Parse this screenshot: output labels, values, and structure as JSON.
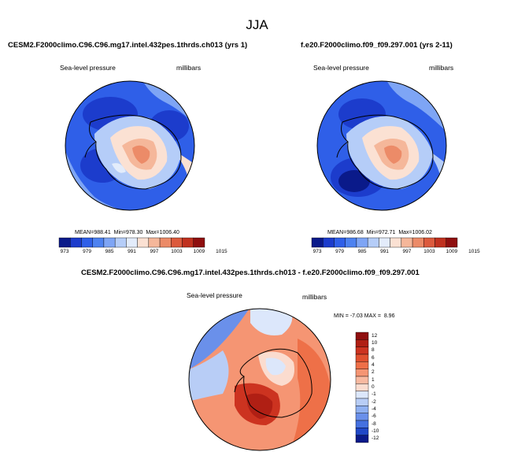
{
  "page": {
    "title": "JJA"
  },
  "panels": [
    {
      "header": "CESM2.F2000climo.C96.C96.mg17.intel.432pes.1thrds.ch013 (yrs 1)",
      "variable": "Sea-level pressure",
      "units": "millibars",
      "stats": {
        "mean_label": "MEAN=",
        "mean": "988.41",
        "min_label": "Min=",
        "min": "978.30",
        "max_label": "Max=",
        "max": "1006.40"
      }
    },
    {
      "header": "f.e20.F2000climo.f09_f09.297.001 (yrs 2-11)",
      "variable": "Sea-level pressure",
      "units": "millibars",
      "stats": {
        "mean_label": "MEAN=",
        "mean": "986.68",
        "min_label": "Min=",
        "min": "972.71",
        "max_label": "Max=",
        "max": "1006.02"
      }
    },
    {
      "header": "CESM2.F2000climo.C96.C96.mg17.intel.432pes.1thrds.ch013 - f.e20.F2000climo.f09_f09.297.001",
      "variable": "Sea-level pressure",
      "units": "millibars",
      "stats": {
        "min_label": "MIN =",
        "min": "-7.03",
        "max_label": "MAX =",
        "max": "8.96"
      }
    }
  ],
  "colorbars": {
    "abs": {
      "labels": [
        "973",
        "979",
        "985",
        "991",
        "997",
        "1003",
        "1009",
        "1015"
      ],
      "colors": [
        "#0a1a8a",
        "#1c3ccc",
        "#2f5fe8",
        "#4d82f0",
        "#7ea5f5",
        "#b5cdf8",
        "#e3ecfb",
        "#fbe1d3",
        "#f5b79a",
        "#ec8b68",
        "#dc5a3d",
        "#c0311f",
        "#8f0f0f"
      ]
    },
    "diff": {
      "labels": [
        "12",
        "10",
        "8",
        "6",
        "4",
        "2",
        "1",
        "0",
        "-1",
        "-2",
        "-4",
        "-6",
        "-8",
        "-10",
        "-12"
      ],
      "colors": [
        "#8f0f0f",
        "#b01f14",
        "#cc3320",
        "#e0502f",
        "#ee7048",
        "#f59573",
        "#f8b9a0",
        "#fbdccf",
        "#dce7fb",
        "#b8cdf6",
        "#8fb0f1",
        "#6a90ea",
        "#4470e0",
        "#2048c8",
        "#0a1a8a"
      ]
    }
  }
}
